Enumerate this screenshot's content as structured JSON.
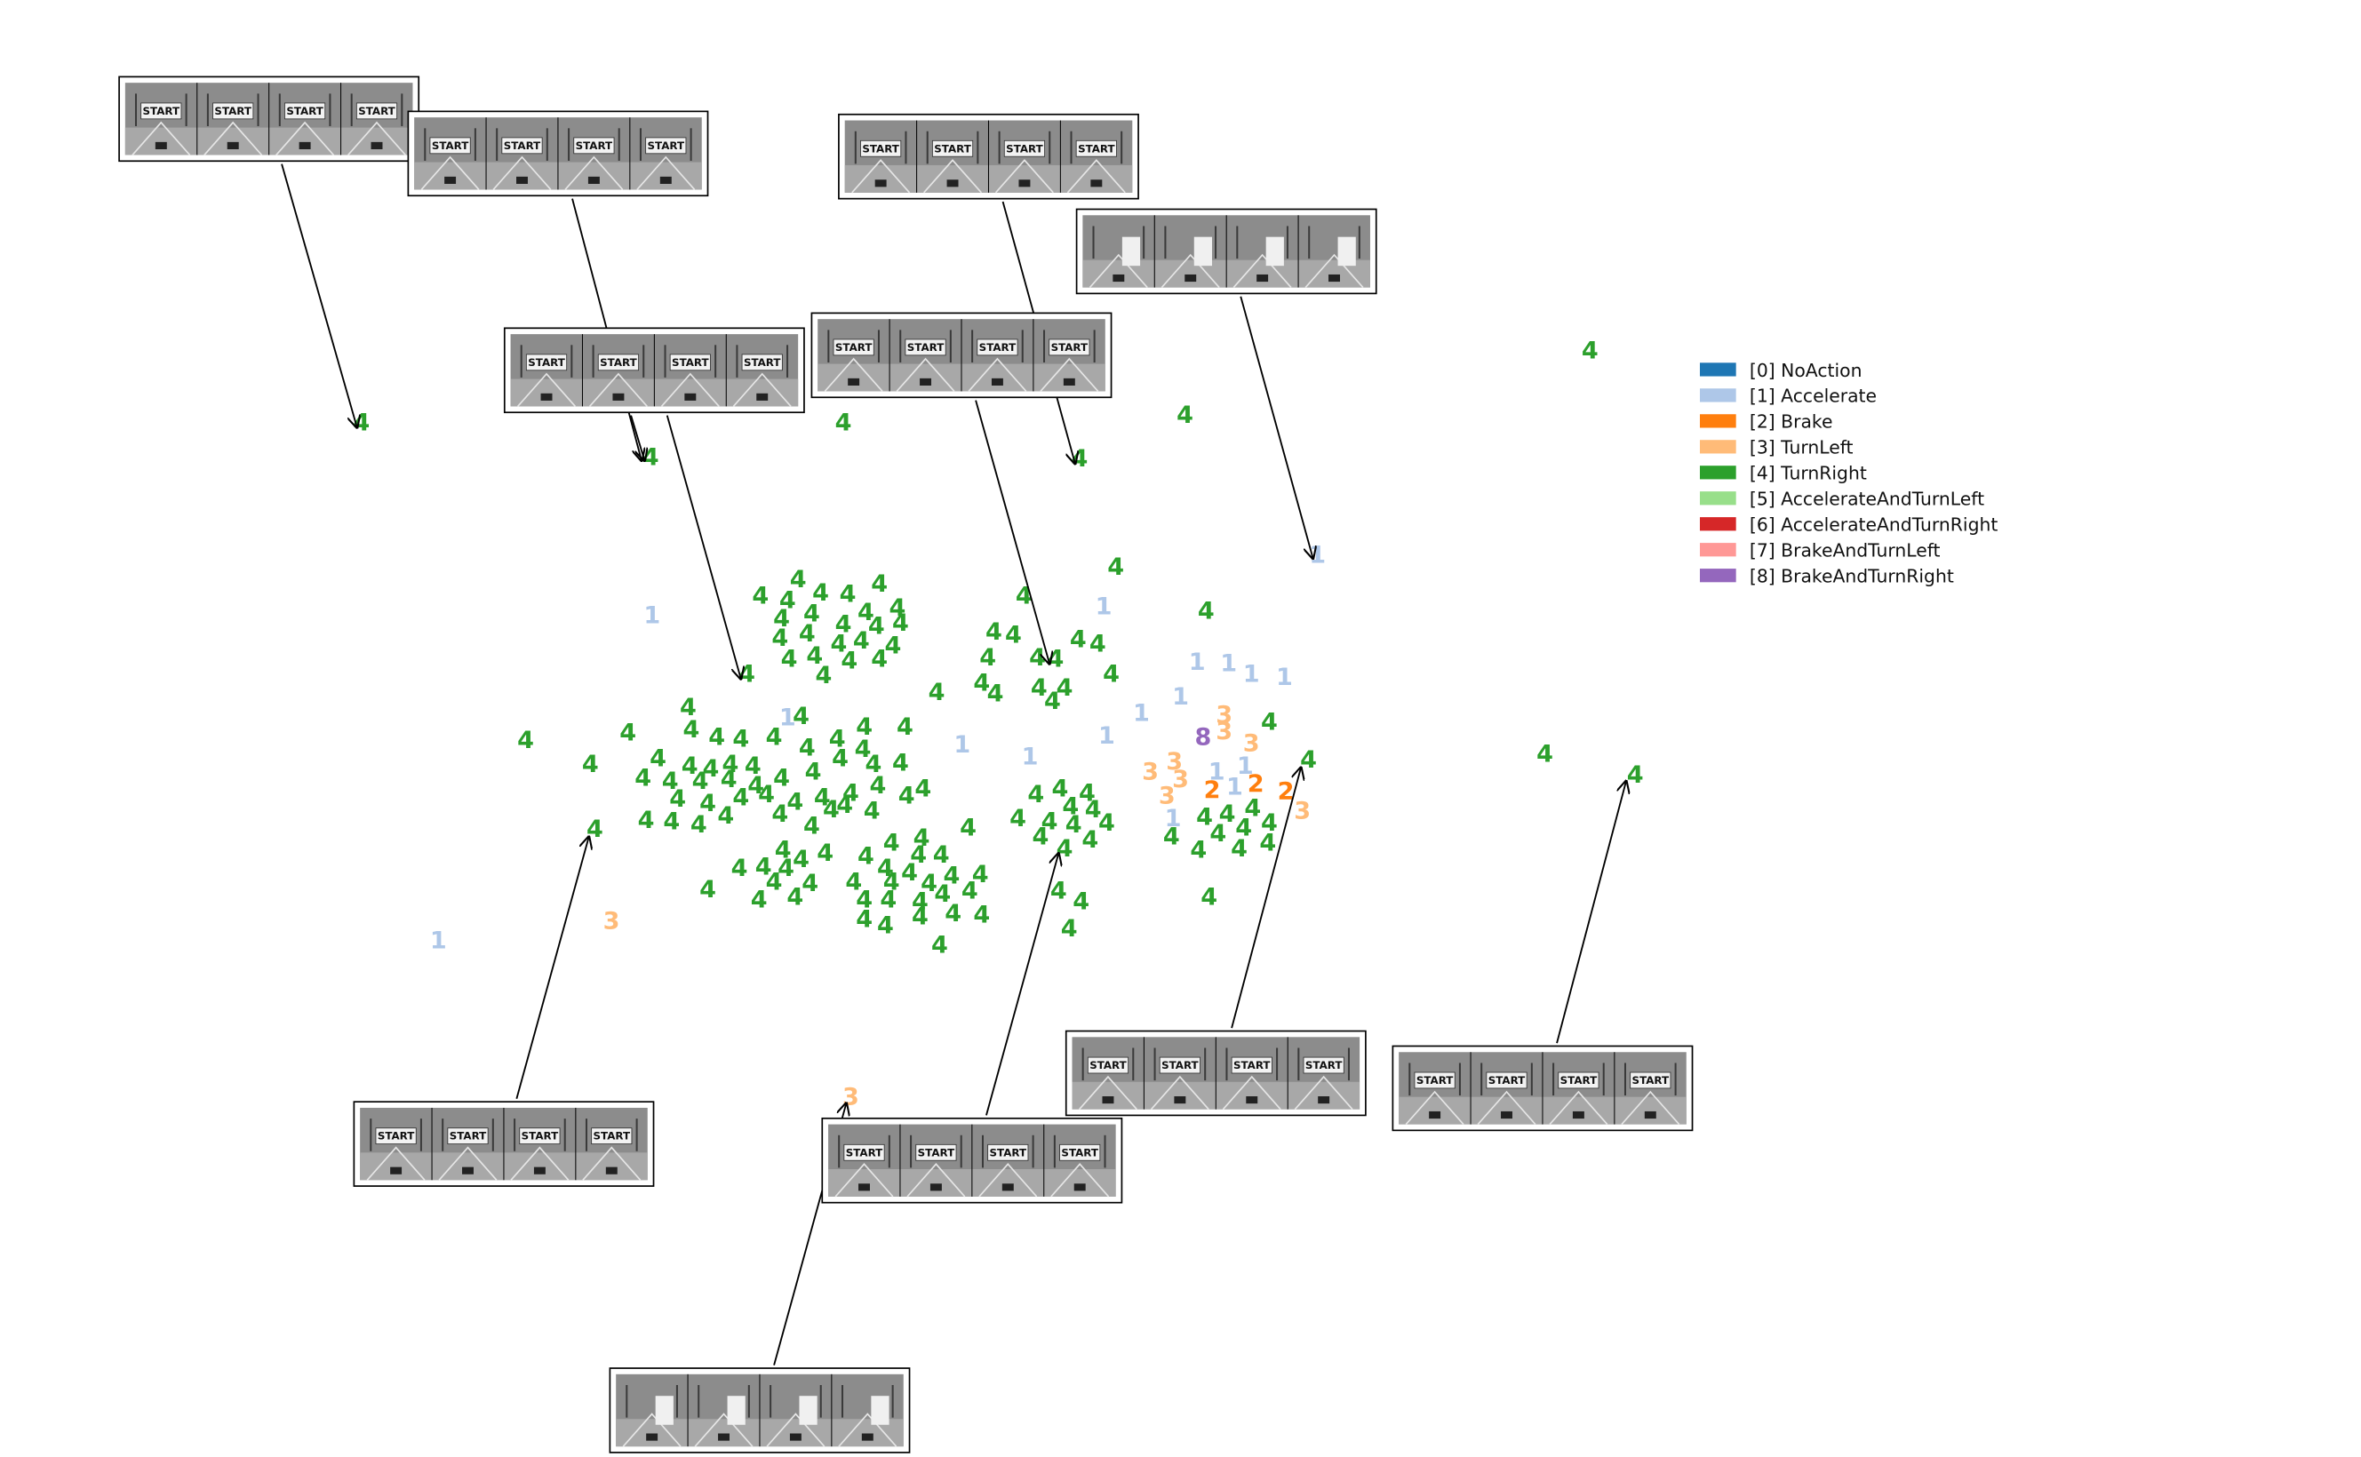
{
  "chart_data": {
    "type": "scatter",
    "title": "",
    "xlabel": "",
    "ylabel": "",
    "grid": false,
    "axes_visible": false,
    "legend_placement": "right",
    "legend": [
      {
        "label": "[0] NoAction",
        "color": "#1f77b4"
      },
      {
        "label": "[1] Accelerate",
        "color": "#aec7e8"
      },
      {
        "label": "[2] Brake",
        "color": "#ff7f0e"
      },
      {
        "label": "[3] TurnLeft",
        "color": "#ffbb78"
      },
      {
        "label": "[4] TurnRight",
        "color": "#2ca02c"
      },
      {
        "label": "[5] AccelerateAndTurnLeft",
        "color": "#98df8a"
      },
      {
        "label": "[6] AccelerateAndTurnRight",
        "color": "#d62728"
      },
      {
        "label": "[7] BrakeAndTurnLeft",
        "color": "#ff9896"
      },
      {
        "label": "[8] BrakeAndTurnRight",
        "color": "#9467bd"
      }
    ],
    "points": [
      [
        240,
        281,
        4
      ],
      [
        432,
        304,
        4
      ],
      [
        560,
        281,
        4
      ],
      [
        787,
        276,
        4
      ],
      [
        717,
        305,
        4
      ],
      [
        1056,
        233,
        4
      ],
      [
        875,
        369,
        1
      ],
      [
        530,
        385,
        4
      ],
      [
        584,
        388,
        4
      ],
      [
        505,
        396,
        4
      ],
      [
        523,
        399,
        4
      ],
      [
        545,
        394,
        4
      ],
      [
        563,
        395,
        4
      ],
      [
        596,
        404,
        4
      ],
      [
        519,
        411,
        4
      ],
      [
        539,
        408,
        4
      ],
      [
        560,
        415,
        4
      ],
      [
        575,
        407,
        4
      ],
      [
        582,
        416,
        4
      ],
      [
        598,
        414,
        4
      ],
      [
        518,
        424,
        4
      ],
      [
        536,
        421,
        4
      ],
      [
        557,
        428,
        4
      ],
      [
        572,
        426,
        4
      ],
      [
        593,
        429,
        4
      ],
      [
        524,
        438,
        4
      ],
      [
        541,
        436,
        4
      ],
      [
        564,
        439,
        4
      ],
      [
        584,
        438,
        4
      ],
      [
        547,
        449,
        4
      ],
      [
        496,
        448,
        4
      ],
      [
        433,
        409,
        1
      ],
      [
        741,
        377,
        4
      ],
      [
        801,
        406,
        4
      ],
      [
        680,
        396,
        4
      ],
      [
        733,
        403,
        1
      ],
      [
        660,
        420,
        4
      ],
      [
        673,
        422,
        4
      ],
      [
        716,
        425,
        4
      ],
      [
        729,
        428,
        4
      ],
      [
        656,
        437,
        4
      ],
      [
        689,
        437,
        4
      ],
      [
        701,
        438,
        4
      ],
      [
        738,
        448,
        4
      ],
      [
        652,
        454,
        4
      ],
      [
        690,
        457,
        4
      ],
      [
        707,
        457,
        4
      ],
      [
        661,
        461,
        4
      ],
      [
        699,
        466,
        4
      ],
      [
        622,
        460,
        4
      ],
      [
        795,
        440,
        1
      ],
      [
        816,
        441,
        1
      ],
      [
        831,
        448,
        1
      ],
      [
        853,
        450,
        1
      ],
      [
        784,
        463,
        1
      ],
      [
        758,
        474,
        1
      ],
      [
        813,
        475,
        3
      ],
      [
        813,
        486,
        3
      ],
      [
        843,
        480,
        4
      ],
      [
        799,
        490,
        8
      ],
      [
        831,
        494,
        3
      ],
      [
        780,
        506,
        3
      ],
      [
        764,
        513,
        3
      ],
      [
        808,
        513,
        1
      ],
      [
        827,
        509,
        1
      ],
      [
        869,
        505,
        4
      ],
      [
        784,
        518,
        3
      ],
      [
        820,
        523,
        1
      ],
      [
        775,
        529,
        3
      ],
      [
        805,
        525,
        2
      ],
      [
        834,
        521,
        2
      ],
      [
        854,
        526,
        2
      ],
      [
        865,
        539,
        3
      ],
      [
        779,
        544,
        1
      ],
      [
        800,
        543,
        4
      ],
      [
        815,
        541,
        4
      ],
      [
        832,
        537,
        4
      ],
      [
        843,
        547,
        4
      ],
      [
        778,
        556,
        4
      ],
      [
        809,
        554,
        4
      ],
      [
        826,
        550,
        4
      ],
      [
        842,
        560,
        4
      ],
      [
        796,
        565,
        4
      ],
      [
        823,
        564,
        4
      ],
      [
        803,
        596,
        4
      ],
      [
        735,
        489,
        1
      ],
      [
        684,
        503,
        1
      ],
      [
        639,
        495,
        1
      ],
      [
        688,
        528,
        4
      ],
      [
        704,
        524,
        4
      ],
      [
        722,
        527,
        4
      ],
      [
        676,
        544,
        4
      ],
      [
        697,
        546,
        4
      ],
      [
        711,
        536,
        4
      ],
      [
        726,
        538,
        4
      ],
      [
        735,
        547,
        4
      ],
      [
        691,
        556,
        4
      ],
      [
        713,
        548,
        4
      ],
      [
        724,
        558,
        4
      ],
      [
        707,
        564,
        4
      ],
      [
        703,
        592,
        4
      ],
      [
        718,
        599,
        4
      ],
      [
        710,
        617,
        4
      ],
      [
        349,
        492,
        4
      ],
      [
        457,
        470,
        4
      ],
      [
        417,
        487,
        4
      ],
      [
        459,
        485,
        4
      ],
      [
        476,
        490,
        4
      ],
      [
        492,
        491,
        4
      ],
      [
        514,
        490,
        4
      ],
      [
        523,
        477,
        1
      ],
      [
        532,
        476,
        4
      ],
      [
        392,
        508,
        4
      ],
      [
        437,
        504,
        4
      ],
      [
        458,
        509,
        4
      ],
      [
        472,
        511,
        4
      ],
      [
        485,
        508,
        4
      ],
      [
        500,
        509,
        4
      ],
      [
        536,
        497,
        4
      ],
      [
        556,
        491,
        4
      ],
      [
        574,
        483,
        4
      ],
      [
        601,
        483,
        4
      ],
      [
        573,
        498,
        4
      ],
      [
        427,
        517,
        4
      ],
      [
        445,
        519,
        4
      ],
      [
        465,
        519,
        4
      ],
      [
        484,
        518,
        4
      ],
      [
        502,
        522,
        4
      ],
      [
        519,
        517,
        4
      ],
      [
        540,
        513,
        4
      ],
      [
        558,
        504,
        4
      ],
      [
        580,
        508,
        4
      ],
      [
        598,
        507,
        4
      ],
      [
        450,
        531,
        4
      ],
      [
        470,
        534,
        4
      ],
      [
        492,
        530,
        4
      ],
      [
        509,
        528,
        4
      ],
      [
        528,
        533,
        4
      ],
      [
        546,
        530,
        4
      ],
      [
        565,
        527,
        4
      ],
      [
        583,
        522,
        4
      ],
      [
        613,
        524,
        4
      ],
      [
        602,
        529,
        4
      ],
      [
        429,
        545,
        4
      ],
      [
        446,
        546,
        4
      ],
      [
        464,
        548,
        4
      ],
      [
        482,
        542,
        4
      ],
      [
        518,
        541,
        4
      ],
      [
        539,
        549,
        4
      ],
      [
        552,
        538,
        4
      ],
      [
        561,
        535,
        4
      ],
      [
        579,
        539,
        4
      ],
      [
        395,
        551,
        4
      ],
      [
        643,
        550,
        4
      ],
      [
        520,
        565,
        4
      ],
      [
        592,
        560,
        4
      ],
      [
        612,
        557,
        4
      ],
      [
        575,
        569,
        4
      ],
      [
        548,
        567,
        4
      ],
      [
        588,
        577,
        4
      ],
      [
        610,
        568,
        4
      ],
      [
        625,
        568,
        4
      ],
      [
        491,
        577,
        4
      ],
      [
        507,
        576,
        4
      ],
      [
        522,
        577,
        4
      ],
      [
        532,
        571,
        4
      ],
      [
        567,
        586,
        4
      ],
      [
        592,
        586,
        4
      ],
      [
        604,
        580,
        4
      ],
      [
        617,
        587,
        4
      ],
      [
        632,
        582,
        4
      ],
      [
        651,
        581,
        4
      ],
      [
        470,
        591,
        4
      ],
      [
        514,
        586,
        4
      ],
      [
        538,
        587,
        4
      ],
      [
        574,
        598,
        4
      ],
      [
        590,
        598,
        4
      ],
      [
        611,
        599,
        4
      ],
      [
        626,
        594,
        4
      ],
      [
        644,
        592,
        4
      ],
      [
        504,
        598,
        4
      ],
      [
        528,
        596,
        4
      ],
      [
        574,
        611,
        4
      ],
      [
        588,
        615,
        4
      ],
      [
        611,
        609,
        4
      ],
      [
        633,
        607,
        4
      ],
      [
        652,
        608,
        4
      ],
      [
        624,
        628,
        4
      ],
      [
        406,
        612,
        3
      ],
      [
        291,
        625,
        1
      ],
      [
        1026,
        501,
        4
      ],
      [
        1086,
        515,
        4
      ],
      [
        565,
        729,
        3
      ]
    ],
    "image_insets": [
      {
        "name": "frame-strip-1",
        "frames": [
          "START",
          "START",
          "START",
          "START"
        ]
      },
      {
        "name": "frame-strip-2",
        "frames": [
          "START",
          "START",
          "START",
          "START"
        ]
      },
      {
        "name": "frame-strip-3",
        "frames": [
          "START",
          "START",
          "START",
          "START"
        ]
      },
      {
        "name": "frame-strip-4",
        "frames": [
          "START",
          "START",
          "START",
          "START"
        ]
      },
      {
        "name": "frame-strip-5",
        "frames": [
          "",
          "",
          "",
          ""
        ]
      },
      {
        "name": "frame-strip-6",
        "frames": [
          "START",
          "START",
          "START",
          "START"
        ]
      },
      {
        "name": "frame-strip-7",
        "frames": [
          "START",
          "START",
          "START",
          "START"
        ]
      },
      {
        "name": "frame-strip-8",
        "frames": [
          "START",
          "START",
          "START",
          "START"
        ]
      },
      {
        "name": "frame-strip-9",
        "frames": [
          "START",
          "START",
          "START",
          "START"
        ]
      },
      {
        "name": "frame-strip-10",
        "frames": [
          "START",
          "START",
          "START",
          "START"
        ]
      },
      {
        "name": "frame-strip-11",
        "frames": [
          "",
          "",
          "",
          ""
        ]
      }
    ]
  }
}
